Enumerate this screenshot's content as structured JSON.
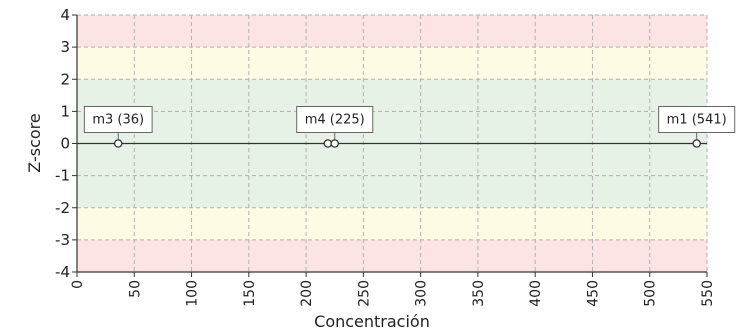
{
  "chart_data": {
    "type": "scatter",
    "title": "",
    "xlabel": "Concentración",
    "ylabel": "Z-score",
    "xlim": [
      0,
      550
    ],
    "ylim": [
      -4,
      4
    ],
    "x_ticks": [
      0,
      50,
      100,
      150,
      200,
      250,
      300,
      350,
      400,
      450,
      500,
      550
    ],
    "y_ticks": [
      4,
      3,
      2,
      1,
      0,
      -1,
      -2,
      -3,
      -4
    ],
    "y_tick_labels": [
      "4",
      "3",
      "2",
      "1",
      "0",
      "-1",
      "-2",
      "-3",
      "-4"
    ],
    "grid": true,
    "zero_line": true,
    "bands": [
      {
        "from": 3,
        "to": 4,
        "color": "#fde4e4"
      },
      {
        "from": 2,
        "to": 3,
        "color": "#fdfbe3"
      },
      {
        "from": -2,
        "to": 2,
        "color": "#e6f2e6"
      },
      {
        "from": -3,
        "to": -2,
        "color": "#fdfbe3"
      },
      {
        "from": -4,
        "to": -3,
        "color": "#fde4e4"
      }
    ],
    "points": [
      {
        "x": 36,
        "y": 0
      },
      {
        "x": 219,
        "y": 0
      },
      {
        "x": 225,
        "y": 0
      },
      {
        "x": 541,
        "y": 0
      }
    ],
    "annotations": [
      {
        "text": "m3 (36)",
        "x": 36,
        "y": 0
      },
      {
        "text": "m4 (225)",
        "x": 225,
        "y": 0
      },
      {
        "text": "m1 (541)",
        "x": 541,
        "y": 0
      }
    ],
    "colors": {
      "grid": "#b0b0b0",
      "axis": "#333333",
      "marker_fill": "#ffffff",
      "marker_stroke": "#333333",
      "label_bg": "#ffffff",
      "label_border": "#666666"
    }
  }
}
